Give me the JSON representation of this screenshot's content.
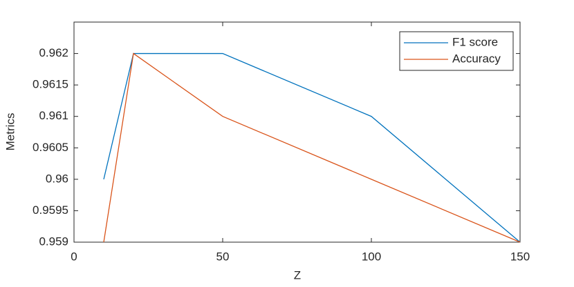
{
  "chart_data": {
    "type": "line",
    "x_label": "Z",
    "y_label": "Metrics",
    "x": [
      10,
      20,
      50,
      100,
      150
    ],
    "series": [
      {
        "name": "F1 score",
        "color": "#0072BD",
        "values": [
          0.96,
          0.962,
          0.962,
          0.961,
          0.959
        ]
      },
      {
        "name": "Accuracy",
        "color": "#D95319",
        "values": [
          0.959,
          0.962,
          0.961,
          0.96,
          0.959
        ]
      }
    ],
    "xlim": [
      0,
      150
    ],
    "xticks": [
      0,
      50,
      100,
      150
    ],
    "ylim": [
      0.959,
      0.9625
    ],
    "yticks": [
      0.959,
      0.9595,
      0.96,
      0.9605,
      0.961,
      0.9615,
      0.962
    ],
    "legend": "top-right"
  }
}
